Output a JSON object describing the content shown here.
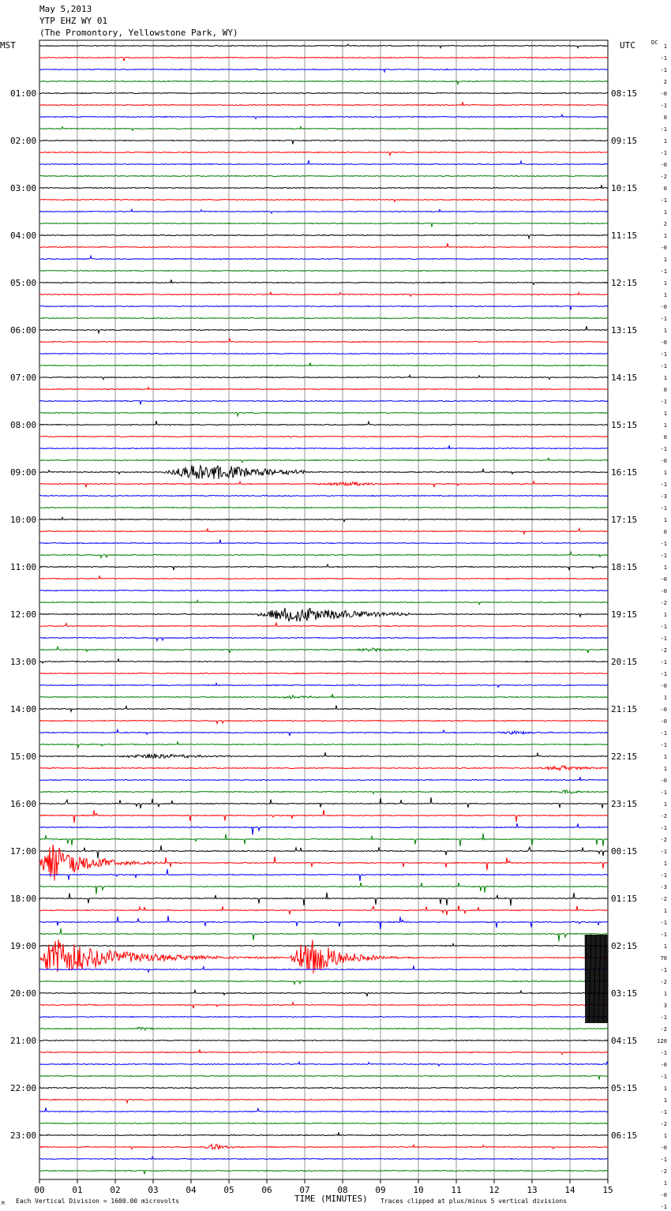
{
  "header": {
    "date": "May 5,2013",
    "station": "YTP EHZ WY 01",
    "location": "(The Promontory, Yellowstone Park, WY)"
  },
  "axes": {
    "left_zone": "MST",
    "right_zone": "UTC",
    "dc_label": "DC",
    "x_title": "TIME (MINUTES)",
    "scale_note": "Each Vertical Division = 1600.00 microvolts",
    "clip_note": "Traces clipped at plus/minus 5 vertical divisions",
    "corner_mark": "M"
  },
  "chart_data": {
    "type": "line",
    "title": "YTP EHZ WY 01",
    "xlabel": "TIME (MINUTES)",
    "xlim": [
      0,
      15
    ],
    "x_ticks": [
      "00",
      "01",
      "02",
      "03",
      "04",
      "05",
      "06",
      "07",
      "08",
      "09",
      "10",
      "11",
      "12",
      "13",
      "14",
      "15"
    ],
    "traces_per_hour": 4,
    "minutes_per_trace": 15,
    "trace_colors": [
      "#000000",
      "#ff0000",
      "#0000ff",
      "#008000"
    ],
    "grid": true,
    "left_hour_labels": [
      "01:00",
      "02:00",
      "03:00",
      "04:00",
      "05:00",
      "06:00",
      "07:00",
      "08:00",
      "09:00",
      "10:00",
      "11:00",
      "12:00",
      "13:00",
      "14:00",
      "15:00",
      "16:00",
      "17:00",
      "18:00",
      "19:00",
      "20:00",
      "21:00",
      "22:00",
      "23:00"
    ],
    "right_hour_labels": [
      "08:15",
      "09:15",
      "10:15",
      "11:15",
      "12:15",
      "13:15",
      "14:15",
      "15:15",
      "16:15",
      "17:15",
      "18:15",
      "19:15",
      "20:15",
      "21:15",
      "22:15",
      "23:15",
      "00:15",
      "01:15",
      "02:15",
      "03:15",
      "04:15",
      "05:15",
      "06:15"
    ],
    "dc_offsets": [
      "1",
      "-1",
      "-1",
      "2",
      "-0",
      "-1",
      "0",
      "-1",
      "1",
      "-1",
      "-0",
      "-2",
      "0",
      "-1",
      "1",
      "2",
      "1",
      "-0",
      "1",
      "-1",
      "1",
      "1",
      "-0",
      "-1",
      "1",
      "-0",
      "-1",
      "-1",
      "1",
      "0",
      "-1",
      "1",
      "1",
      "0",
      "-1",
      "-0",
      "1",
      "-1",
      "-3",
      "-1",
      "1",
      "0",
      "-1",
      "-1",
      "1",
      "-0",
      "-0",
      "-2",
      "1",
      "-1",
      "-1",
      "-2",
      "-1",
      "-1",
      "-0",
      "1",
      "-0",
      "-0",
      "-1",
      "-1",
      "1",
      "1",
      "-0",
      "-1",
      "1",
      "-2",
      "-1",
      "-2",
      "-1",
      "1",
      "-1",
      "-3",
      "-2",
      "1",
      "-1",
      "-1",
      "1",
      "70",
      "-1",
      "-2",
      "1",
      "3",
      "-1",
      "-2",
      "120",
      "-1",
      "-0",
      "-1",
      "1",
      "1",
      "-1",
      "-2",
      "1",
      "-0",
      "-1",
      "-2",
      "1",
      "-0",
      "-1",
      "-1"
    ],
    "events": [
      {
        "trace": 36,
        "start_min": 3.2,
        "peak_min": 4.3,
        "end_min": 7.0,
        "amp_div": 2.2,
        "dur_min": 3.5
      },
      {
        "trace": 37,
        "start_min": 7.0,
        "peak_min": 8.1,
        "end_min": 9.5,
        "amp_div": 0.45,
        "dur_min": 2.0
      },
      {
        "trace": 48,
        "start_min": 5.6,
        "peak_min": 6.7,
        "end_min": 9.8,
        "amp_div": 2.0,
        "dur_min": 3.5
      },
      {
        "trace": 51,
        "start_min": 8.2,
        "peak_min": 8.8,
        "end_min": 10.2,
        "amp_div": 0.35,
        "dur_min": 1.6
      },
      {
        "trace": 55,
        "start_min": 6.2,
        "peak_min": 6.8,
        "end_min": 8.2,
        "amp_div": 0.45,
        "dur_min": 1.2
      },
      {
        "trace": 58,
        "start_min": 11.8,
        "peak_min": 12.6,
        "end_min": 13.8,
        "amp_div": 0.4,
        "dur_min": 1.2
      },
      {
        "trace": 60,
        "start_min": 2.0,
        "peak_min": 3.1,
        "end_min": 5.2,
        "amp_div": 0.7,
        "dur_min": 2.2
      },
      {
        "trace": 61,
        "start_min": 13.0,
        "peak_min": 13.8,
        "end_min": 15.0,
        "amp_div": 0.55,
        "dur_min": 1.5
      },
      {
        "trace": 63,
        "start_min": 13.3,
        "peak_min": 14.0,
        "end_min": 14.9,
        "amp_div": 0.45,
        "dur_min": 1.0
      },
      {
        "trace": 69,
        "start_min": 0.0,
        "peak_min": 0.25,
        "end_min": 4.0,
        "amp_div": 5.0,
        "dur_min": 2.0
      },
      {
        "trace": 77,
        "start_min": 0.0,
        "peak_min": 0.3,
        "end_min": 9.0,
        "amp_div": 5.0,
        "dur_min": 3.5
      },
      {
        "trace": 77,
        "start_min": 6.6,
        "peak_min": 7.1,
        "end_min": 10.5,
        "amp_div": 5.0,
        "dur_min": 1.6
      },
      {
        "trace": 83,
        "start_min": 2.4,
        "peak_min": 2.7,
        "end_min": 3.8,
        "amp_div": 0.4,
        "dur_min": 0.8
      },
      {
        "trace": 93,
        "start_min": 4.3,
        "peak_min": 4.6,
        "end_min": 5.6,
        "amp_div": 0.8,
        "dur_min": 0.7
      }
    ],
    "clipped_block": {
      "traces": [
        76,
        77,
        78,
        79,
        80,
        81,
        82
      ],
      "start_min": 14.4,
      "end_min": 15.0,
      "color": "#000000"
    }
  }
}
